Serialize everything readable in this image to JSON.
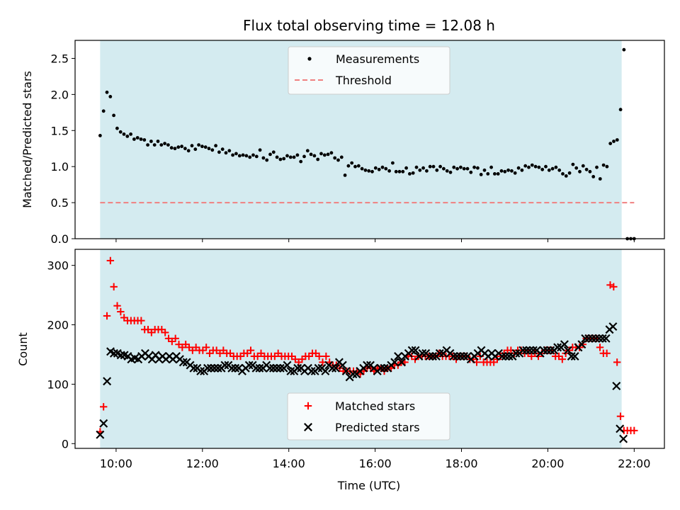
{
  "colors": {
    "observing_window": "#d4ebf0",
    "measurements": "#000000",
    "threshold": "#f08080",
    "matched": "#ff0000",
    "predicted": "#000000"
  },
  "chart_data": [
    {
      "type": "scatter",
      "title": "Flux total observing time = 12.08 h",
      "xlabel": "",
      "ylabel": "Matched/Predicted stars",
      "ylim": [
        0,
        2.75
      ],
      "yticks": [
        "0.0",
        "0.5",
        "1.0",
        "1.5",
        "2.0",
        "2.5"
      ],
      "ytick_values": [
        0,
        0.5,
        1.0,
        1.5,
        2.0,
        2.5
      ],
      "xlim_hours": [
        9.05,
        22.7
      ],
      "observing_window_hours": [
        9.63,
        21.71
      ],
      "legend_position": "upper-center",
      "threshold": 0.5,
      "series": [
        {
          "name": "Measurements",
          "kind": "dots",
          "y": [
            1.43,
            1.77,
            2.03,
            1.97,
            1.71,
            1.53,
            1.48,
            1.45,
            1.42,
            1.45,
            1.38,
            1.4,
            1.38,
            1.37,
            1.3,
            1.35,
            1.3,
            1.35,
            1.3,
            1.32,
            1.3,
            1.26,
            1.25,
            1.27,
            1.28,
            1.25,
            1.22,
            1.29,
            1.24,
            1.3,
            1.28,
            1.27,
            1.25,
            1.23,
            1.29,
            1.2,
            1.24,
            1.19,
            1.22,
            1.16,
            1.18,
            1.15,
            1.16,
            1.15,
            1.13,
            1.16,
            1.14,
            1.23,
            1.12,
            1.09,
            1.17,
            1.2,
            1.13,
            1.1,
            1.11,
            1.15,
            1.13,
            1.13,
            1.16,
            1.07,
            1.14,
            1.22,
            1.17,
            1.15,
            1.1,
            1.18,
            1.16,
            1.17,
            1.19,
            1.12,
            1.09,
            1.13,
            0.88,
            1.01,
            1.05,
            1.0,
            1.01,
            0.97,
            0.95,
            0.94,
            0.93,
            0.98,
            0.96,
            0.99,
            0.97,
            0.94,
            1.05,
            0.93,
            0.93,
            0.93,
            0.98,
            0.9,
            0.91,
            0.99,
            0.95,
            0.98,
            0.94,
            1.0,
            1.0,
            0.95,
            1.0,
            0.97,
            0.94,
            0.92,
            0.99,
            0.97,
            0.99,
            0.97,
            0.97,
            0.92,
            0.99,
            0.98,
            0.89,
            0.95,
            0.9,
            0.99,
            0.9,
            0.9,
            0.94,
            0.93,
            0.95,
            0.94,
            0.91,
            0.98,
            0.95,
            1.01,
            0.99,
            1.02,
            1.0,
            0.99,
            0.96,
            1.0,
            0.95,
            0.97,
            0.99,
            0.95,
            0.9,
            0.87,
            0.91,
            1.03,
            0.98,
            0.93,
            1.01,
            0.96,
            0.93,
            0.86,
            0.99,
            0.83,
            1.02,
            1.0,
            1.32,
            1.35,
            1.37,
            1.79,
            2.62,
            0.0,
            0.0,
            0.0
          ]
        }
      ]
    },
    {
      "type": "scatter",
      "title": "",
      "xlabel": "Time (UTC)",
      "ylabel": "Count",
      "ylim": [
        -8,
        327
      ],
      "yticks": [
        "0",
        "100",
        "200",
        "300"
      ],
      "ytick_values": [
        0,
        100,
        200,
        300
      ],
      "xticks": [
        "10:00",
        "12:00",
        "14:00",
        "16:00",
        "18:00",
        "20:00",
        "22:00"
      ],
      "xtick_hours": [
        10,
        12,
        14,
        16,
        18,
        20,
        22
      ],
      "xlim_hours": [
        9.05,
        22.7
      ],
      "observing_window_hours": [
        9.63,
        21.71
      ],
      "legend_position": "lower-center",
      "series": [
        {
          "name": "Matched stars",
          "kind": "plus",
          "y": [
            20,
            62,
            215,
            308,
            264,
            232,
            222,
            212,
            207,
            207,
            207,
            207,
            207,
            192,
            192,
            187,
            192,
            192,
            192,
            187,
            177,
            172,
            177,
            167,
            162,
            167,
            162,
            157,
            162,
            157,
            157,
            162,
            152,
            157,
            157,
            152,
            157,
            152,
            152,
            147,
            147,
            147,
            152,
            152,
            157,
            147,
            147,
            152,
            147,
            147,
            147,
            147,
            152,
            147,
            147,
            147,
            147,
            142,
            137,
            142,
            147,
            147,
            152,
            152,
            147,
            137,
            147,
            137,
            132,
            132,
            127,
            122,
            122,
            122,
            122,
            122,
            117,
            122,
            127,
            127,
            122,
            127,
            127,
            122,
            127,
            127,
            132,
            132,
            137,
            137,
            147,
            147,
            142,
            147,
            147,
            147,
            147,
            147,
            147,
            152,
            147,
            147,
            147,
            147,
            142,
            147,
            147,
            147,
            142,
            142,
            137,
            147,
            137,
            137,
            137,
            137,
            142,
            147,
            152,
            157,
            157,
            152,
            157,
            157,
            152,
            152,
            147,
            152,
            147,
            152,
            157,
            157,
            157,
            147,
            147,
            142,
            152,
            157,
            162,
            162,
            162,
            167,
            177,
            177,
            177,
            177,
            162,
            152,
            152,
            267,
            264,
            137,
            46,
            22,
            22,
            22,
            22
          ]
        },
        {
          "name": "Predicted stars",
          "kind": "cross",
          "y": [
            15,
            34,
            105,
            155,
            152,
            152,
            149,
            149,
            147,
            142,
            144,
            142,
            147,
            152,
            147,
            142,
            149,
            142,
            147,
            142,
            147,
            142,
            147,
            142,
            137,
            137,
            132,
            127,
            127,
            122,
            122,
            127,
            127,
            127,
            127,
            127,
            132,
            132,
            127,
            127,
            127,
            122,
            127,
            132,
            132,
            127,
            127,
            127,
            132,
            127,
            127,
            127,
            127,
            127,
            132,
            122,
            122,
            127,
            127,
            122,
            127,
            122,
            122,
            127,
            127,
            122,
            132,
            127,
            127,
            137,
            132,
            122,
            112,
            117,
            117,
            122,
            127,
            132,
            132,
            127,
            122,
            127,
            127,
            127,
            132,
            137,
            147,
            137,
            147,
            152,
            157,
            157,
            147,
            152,
            152,
            147,
            147,
            147,
            152,
            152,
            157,
            152,
            147,
            147,
            147,
            147,
            147,
            142,
            147,
            152,
            157,
            152,
            147,
            152,
            147,
            152,
            147,
            147,
            147,
            147,
            152,
            152,
            157,
            157,
            157,
            157,
            157,
            152,
            157,
            157,
            157,
            157,
            162,
            162,
            167,
            157,
            147,
            147,
            162,
            167,
            177,
            177,
            177,
            177,
            177,
            177,
            177,
            192,
            197,
            97,
            25,
            8
          ]
        }
      ]
    }
  ]
}
